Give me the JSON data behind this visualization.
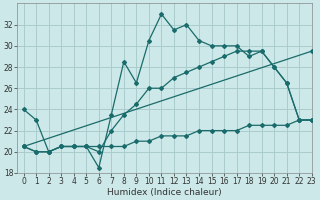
{
  "xlabel": "Humidex (Indice chaleur)",
  "background_color": "#cce8e8",
  "grid_color": "#aacccc",
  "line_color": "#1a6b6b",
  "series": [
    {
      "x": [
        0,
        1,
        2,
        3,
        4,
        5,
        6,
        7,
        8,
        9,
        10,
        11,
        12,
        13,
        14,
        15,
        16,
        17,
        18,
        19,
        20,
        21,
        22,
        23
      ],
      "y": [
        24.0,
        23.0,
        20.0,
        20.5,
        20.5,
        20.5,
        18.5,
        23.5,
        28.5,
        26.5,
        30.5,
        33.0,
        31.5,
        32.0,
        30.5,
        30.0,
        30.0,
        30.0,
        29.0,
        29.5,
        28.0,
        26.5,
        23.0,
        23.0
      ]
    },
    {
      "x": [
        0,
        1,
        2,
        3,
        4,
        5,
        6,
        7,
        8,
        9,
        10,
        11,
        12,
        13,
        14,
        15,
        16,
        17,
        18,
        19,
        20,
        21,
        22,
        23
      ],
      "y": [
        20.5,
        20.0,
        20.0,
        20.5,
        20.5,
        20.5,
        20.0,
        22.0,
        23.5,
        24.5,
        26.0,
        26.0,
        27.0,
        27.5,
        28.0,
        28.5,
        29.0,
        29.5,
        29.5,
        29.5,
        28.0,
        26.5,
        23.0,
        23.0
      ]
    },
    {
      "x": [
        0,
        1,
        2,
        3,
        4,
        5,
        6,
        7,
        8,
        9,
        10,
        11,
        12,
        13,
        14,
        15,
        16,
        17,
        18,
        19,
        20,
        21,
        22,
        23
      ],
      "y": [
        20.5,
        20.0,
        20.0,
        20.5,
        20.5,
        20.5,
        20.5,
        20.5,
        20.5,
        21.0,
        21.0,
        21.5,
        21.5,
        21.5,
        22.0,
        22.0,
        22.0,
        22.0,
        22.5,
        22.5,
        22.5,
        22.5,
        23.0,
        23.0
      ]
    },
    {
      "x": [
        0,
        23
      ],
      "y": [
        20.5,
        29.5
      ]
    }
  ],
  "ylim": [
    18,
    34
  ],
  "xlim": [
    -0.5,
    23
  ],
  "yticks": [
    18,
    20,
    22,
    24,
    26,
    28,
    30,
    32
  ],
  "xticks": [
    0,
    1,
    2,
    3,
    4,
    5,
    6,
    7,
    8,
    9,
    10,
    11,
    12,
    13,
    14,
    15,
    16,
    17,
    18,
    19,
    20,
    21,
    22,
    23
  ],
  "tick_fontsize": 5.5,
  "xlabel_fontsize": 6.5
}
